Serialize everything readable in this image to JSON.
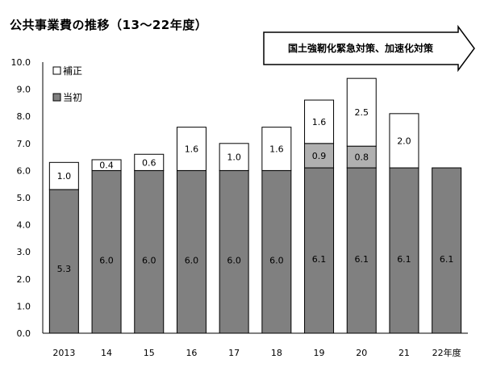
{
  "title": "公共事業費の推移（13〜22年度）",
  "chart_data": {
    "type": "bar",
    "stacked": true,
    "categories": [
      "2013",
      "14",
      "15",
      "16",
      "17",
      "18",
      "19",
      "20",
      "21",
      "22年度"
    ],
    "series": [
      {
        "name": "当初",
        "color": "#808080",
        "values": [
          5.3,
          6.0,
          6.0,
          6.0,
          6.0,
          6.0,
          6.1,
          6.1,
          6.1,
          6.1
        ],
        "labels": [
          "5.3",
          "6.0",
          "6.0",
          "6.0",
          "6.0",
          "6.0",
          "6.1",
          "6.1",
          "6.1",
          "6.1"
        ]
      },
      {
        "name": "",
        "color": "#b0b0b0",
        "values": [
          0,
          0,
          0,
          0,
          0,
          0,
          0.9,
          0.8,
          0,
          0
        ],
        "labels": [
          "",
          "",
          "",
          "",
          "",
          "",
          "0.9",
          "0.8",
          "",
          ""
        ]
      },
      {
        "name": "補正",
        "color": "#ffffff",
        "values": [
          1.0,
          0.4,
          0.6,
          1.6,
          1.0,
          1.6,
          1.6,
          2.5,
          2.0,
          0
        ],
        "labels": [
          "1.0",
          "0.4",
          "0.6",
          "1.6",
          "1.0",
          "1.6",
          "1.6",
          "2.5",
          "2.0",
          ""
        ]
      }
    ],
    "y_ticks": [
      "0.0",
      "1.0",
      "2.0",
      "3.0",
      "4.0",
      "5.0",
      "6.0",
      "7.0",
      "8.0",
      "9.0",
      "10.0"
    ],
    "ylim": [
      0,
      10
    ],
    "grid": false,
    "legend": {
      "position": "top-left",
      "items": [
        {
          "label": "補正",
          "color": "#ffffff"
        },
        {
          "label": "当初",
          "color": "#808080"
        }
      ]
    },
    "annotation": "国土強靭化緊急対策、加速化対策"
  }
}
